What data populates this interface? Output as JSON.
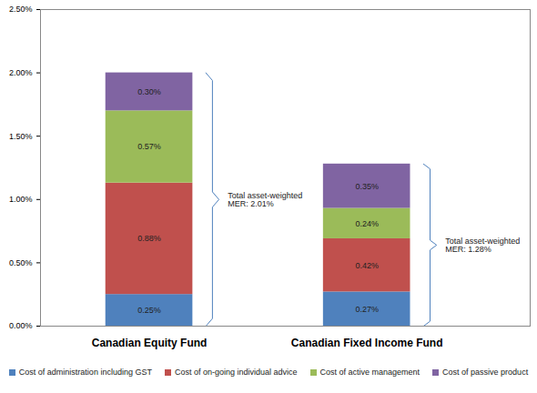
{
  "chart_data": {
    "type": "bar",
    "stacked": true,
    "data_labels": true,
    "grid": false,
    "legend": "bottom",
    "categories": [
      "Canadian Equity Fund",
      "Canadian Fixed Income Fund"
    ],
    "series": [
      {
        "name": "Cost of administration including GST",
        "color": "#4f81bd",
        "values": [
          0.25,
          0.27
        ],
        "value_labels": [
          "0.25%",
          "0.27%"
        ]
      },
      {
        "name": "Cost of on-going individual advice",
        "color": "#c0504d",
        "values": [
          0.88,
          0.42
        ],
        "value_labels": [
          "0.88%",
          "0.42%"
        ]
      },
      {
        "name": "Cost of active management",
        "color": "#9bbb59",
        "values": [
          0.57,
          0.24
        ],
        "value_labels": [
          "0.57%",
          "0.24%"
        ]
      },
      {
        "name": "Cost of passive product",
        "color": "#8064a2",
        "values": [
          0.3,
          0.35
        ],
        "value_labels": [
          "0.30%",
          "0.35%"
        ]
      }
    ],
    "annotations": [
      "Total asset-weighted MER: 2.01%",
      "Total asset-weighted MER: 1.28%"
    ],
    "ylim": [
      0,
      2.5
    ],
    "yticks": [
      {
        "value": 0,
        "label": "0.00%"
      },
      {
        "value": 0.5,
        "label": "0.50%"
      },
      {
        "value": 1,
        "label": "1.00%"
      },
      {
        "value": 1.5,
        "label": "1.50%"
      },
      {
        "value": 2,
        "label": "2.00%"
      },
      {
        "value": 2.5,
        "label": "2.50%"
      }
    ]
  }
}
